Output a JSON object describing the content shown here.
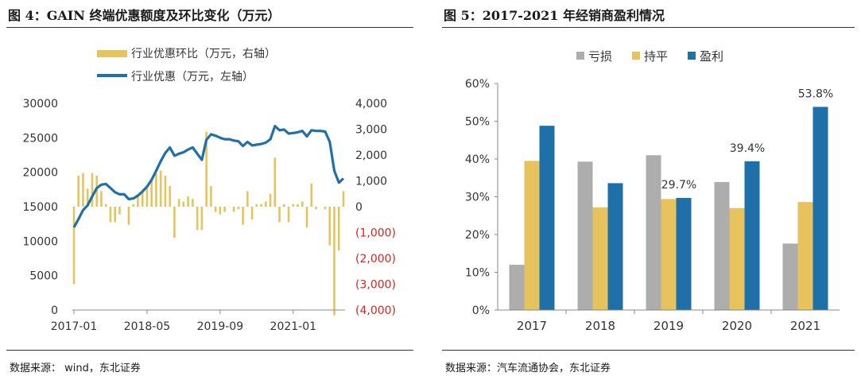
{
  "left": {
    "title": "图 4：GAIN 终端优惠额度及环比变化（万元）",
    "source": "数据来源： wind，东北证券",
    "chart_data": {
      "type": "bar+line",
      "legend": [
        {
          "name": "行业优惠环比（万元，右轴）",
          "kind": "bar",
          "color": "#E6C35C"
        },
        {
          "name": "行业优惠（万元，左轴）",
          "kind": "line",
          "color": "#1F6FA8"
        }
      ],
      "legend_position": "top",
      "x_tick_labels": [
        "2017-01",
        "2018-05",
        "2019-09",
        "2021-01"
      ],
      "y_left": {
        "range": [
          0,
          30000
        ],
        "ticks": [
          "0",
          "5000",
          "10000",
          "15000",
          "20000",
          "25000",
          "30000"
        ]
      },
      "y_right": {
        "range": [
          -4000,
          4000
        ],
        "ticks": [
          "(4,000)",
          "(3,000)",
          "(2,000)",
          "(1,000)",
          "0",
          "1,000",
          "2,000",
          "3,000",
          "4,000"
        ],
        "negative_color": "#E02020"
      },
      "months": 60,
      "series": [
        {
          "name": "行业优惠（万元，左轴）",
          "values": [
            12000,
            13200,
            14500,
            15200,
            16500,
            17700,
            18200,
            18300,
            17700,
            17100,
            16800,
            16800,
            16100,
            16200,
            16600,
            17200,
            17900,
            18900,
            20200,
            21600,
            22800,
            23600,
            22400,
            22700,
            22900,
            23300,
            23600,
            22700,
            21800,
            24700,
            25500,
            25300,
            25000,
            24800,
            24800,
            24600,
            24500,
            23800,
            24400,
            23900,
            24000,
            24100,
            24300,
            24800,
            26700,
            26100,
            26200,
            25600,
            25700,
            25800,
            26000,
            25200,
            26100,
            26000,
            26000,
            25900,
            24400,
            20200,
            18500,
            19100
          ]
        },
        {
          "name": "行业优惠环比（万元，右轴）",
          "values": [
            -3000,
            1200,
            1300,
            700,
            1300,
            1200,
            600,
            100,
            -600,
            -600,
            -300,
            0,
            -700,
            100,
            400,
            600,
            700,
            1000,
            1300,
            1400,
            1200,
            800,
            -1200,
            300,
            200,
            400,
            300,
            -900,
            -900,
            2900,
            800,
            -200,
            -300,
            -200,
            0,
            -200,
            -100,
            -700,
            600,
            -500,
            100,
            100,
            200,
            500,
            1900,
            -600,
            100,
            -600,
            100,
            100,
            200,
            -800,
            900,
            -100,
            0,
            -100,
            -1500,
            -4200,
            -1700,
            600
          ]
        }
      ]
    }
  },
  "right": {
    "title": "图 5：2017-2021 年经销商盈利情况",
    "source": "数据来源：汽车流通协会，东北证券",
    "chart_data": {
      "type": "bar",
      "categories": [
        "2017",
        "2018",
        "2019",
        "2020",
        "2021"
      ],
      "series": [
        {
          "name": "亏损",
          "color": "#ADADAD",
          "values": [
            12,
            39.3,
            41,
            33.9,
            17.6
          ]
        },
        {
          "name": "持平",
          "color": "#E6C35C",
          "values": [
            39.5,
            27.2,
            29.4,
            27,
            28.6
          ]
        },
        {
          "name": "盈利",
          "color": "#1F6FA8",
          "values": [
            48.8,
            33.6,
            29.7,
            39.4,
            53.8
          ]
        }
      ],
      "data_labels": [
        {
          "category": "2019",
          "series": "盈利",
          "text": "29.7%"
        },
        {
          "category": "2020",
          "series": "盈利",
          "text": "39.4%"
        },
        {
          "category": "2021",
          "series": "盈利",
          "text": "53.8%"
        }
      ],
      "ylim": [
        0,
        60
      ],
      "y_ticks": [
        "0%",
        "10%",
        "20%",
        "30%",
        "40%",
        "50%",
        "60%"
      ],
      "legend_position": "top"
    }
  }
}
